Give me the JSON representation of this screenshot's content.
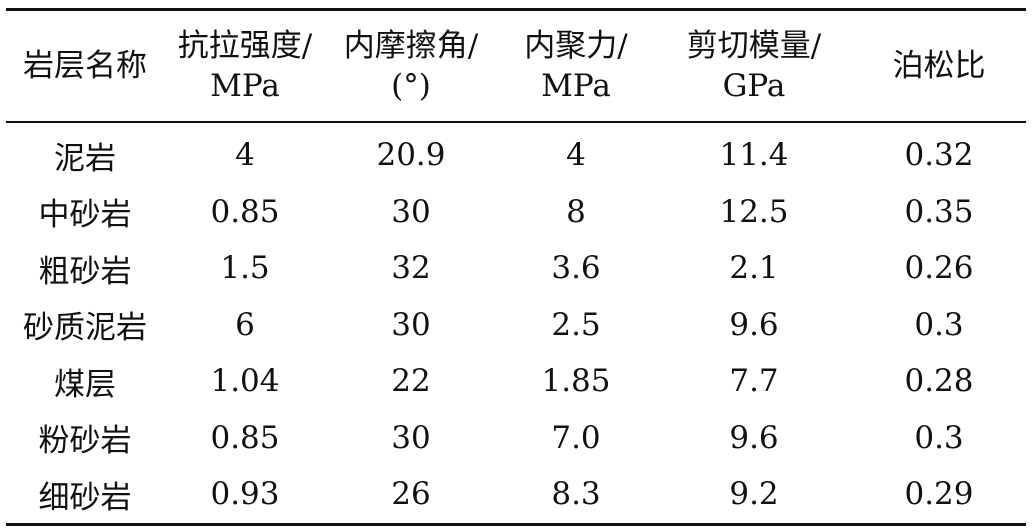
{
  "table": {
    "headers": [
      {
        "line1": "岩层名称",
        "line2": ""
      },
      {
        "line1": "抗拉强度/",
        "line2": "MPa"
      },
      {
        "line1": "内摩擦角/",
        "line2": "(°)"
      },
      {
        "line1": "内聚力/",
        "line2": "MPa"
      },
      {
        "line1": "剪切模量/",
        "line2": "GPa"
      },
      {
        "line1": "泊松比",
        "line2": ""
      }
    ],
    "rows": [
      [
        "泥岩",
        "4",
        "20.9",
        "4",
        "11.4",
        "0.32"
      ],
      [
        "中砂岩",
        "0.85",
        "30",
        "8",
        "12.5",
        "0.35"
      ],
      [
        "粗砂岩",
        "1.5",
        "32",
        "3.6",
        "2.1",
        "0.26"
      ],
      [
        "砂质泥岩",
        "6",
        "30",
        "2.5",
        "9.6",
        "0.3"
      ],
      [
        "煤层",
        "1.04",
        "22",
        "1.85",
        "7.7",
        "0.28"
      ],
      [
        "粉砂岩",
        "0.85",
        "30",
        "7.0",
        "9.6",
        "0.3"
      ],
      [
        "细砂岩",
        "0.93",
        "26",
        "8.3",
        "9.2",
        "0.29"
      ]
    ]
  }
}
